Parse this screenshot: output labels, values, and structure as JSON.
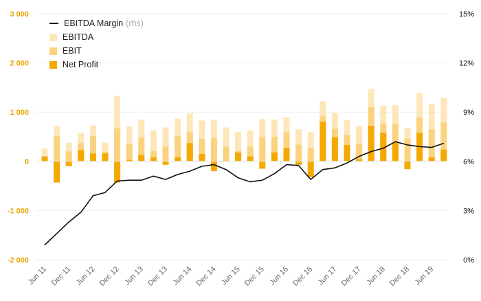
{
  "chart_data": {
    "type": "bar",
    "x_tick_labels": [
      "Jun 11",
      "Dec 11",
      "Jun 12",
      "Dec 12",
      "Jun 13",
      "Dec 13",
      "Jun 14",
      "Dec 14",
      "Jun 15",
      "Dec 15",
      "Jun 16",
      "Dec 16",
      "Jun 17",
      "Dec 17",
      "Jun 18",
      "Dec 18",
      "Jun 19"
    ],
    "quarters_per_tick": 2,
    "left_axis": {
      "ylim": [
        -2000,
        3000
      ],
      "ticks": [
        -2000,
        -1000,
        0,
        1000,
        2000,
        3000
      ],
      "tick_labels": [
        "-2 000",
        "-1 000",
        "0",
        "1 000",
        "2 000",
        "3 000"
      ],
      "color": "#e8a400"
    },
    "right_axis": {
      "ylim": [
        0,
        15
      ],
      "ticks": [
        0,
        3,
        6,
        9,
        12,
        15
      ],
      "tick_labels": [
        "0%",
        "3%",
        "6%",
        "9%",
        "12%",
        "15%"
      ]
    },
    "grid": true,
    "legend_position": "top-left",
    "legend": {
      "margin_label": "EBITDA Margin",
      "margin_suffix": "(rhs)",
      "ebitda_label": "EBITDA",
      "ebit_label": "EBIT",
      "net_label": "Net Profit"
    },
    "series": [
      {
        "name": "EBITDA",
        "kind": "bar",
        "color": "#fde7b8",
        "values": [
          260,
          720,
          380,
          580,
          730,
          380,
          1330,
          710,
          850,
          630,
          690,
          870,
          970,
          830,
          850,
          690,
          600,
          630,
          860,
          850,
          900,
          650,
          590,
          1220,
          980,
          840,
          720,
          1470,
          1130,
          1140,
          680,
          1390,
          1160,
          1290
        ]
      },
      {
        "name": "EBIT",
        "kind": "bar",
        "color": "#fbd27e",
        "values": [
          100,
          510,
          200,
          370,
          510,
          200,
          670,
          350,
          480,
          210,
          300,
          510,
          600,
          460,
          470,
          300,
          210,
          300,
          490,
          500,
          590,
          340,
          270,
          920,
          660,
          540,
          360,
          1100,
          770,
          750,
          460,
          890,
          650,
          790
        ]
      },
      {
        "name": "Net Profit",
        "kind": "bar",
        "color": "#f5a800",
        "values": [
          100,
          -430,
          -100,
          230,
          160,
          160,
          -430,
          30,
          130,
          80,
          -70,
          80,
          370,
          150,
          -200,
          0,
          180,
          100,
          -150,
          180,
          270,
          -70,
          -320,
          800,
          490,
          330,
          40,
          720,
          580,
          380,
          -160,
          580,
          80,
          240
        ]
      },
      {
        "name": "EBITDA Margin",
        "kind": "line",
        "axis": "right",
        "color": "#111111",
        "values": [
          0.9,
          1.6,
          2.3,
          2.9,
          3.9,
          4.1,
          4.8,
          4.85,
          4.85,
          5.1,
          4.9,
          5.2,
          5.4,
          5.7,
          5.8,
          5.5,
          5.0,
          4.75,
          4.85,
          5.25,
          5.8,
          5.75,
          4.9,
          5.5,
          5.6,
          5.9,
          6.3,
          6.6,
          6.8,
          7.2,
          7.0,
          6.9,
          6.85,
          7.1
        ]
      }
    ]
  }
}
